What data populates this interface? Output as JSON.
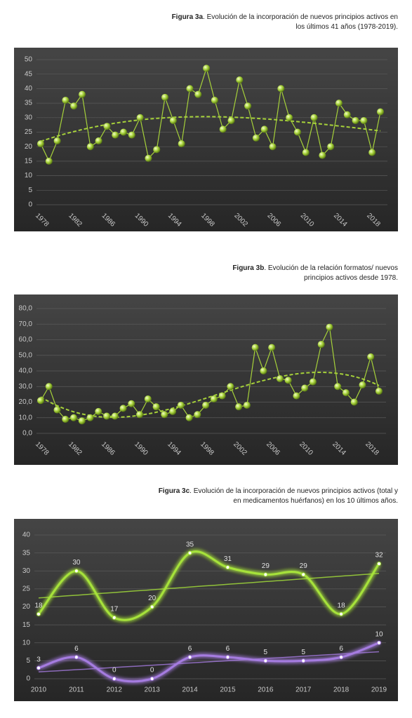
{
  "chart_data": [
    {
      "type": "line",
      "figure_label": "Figura 3a",
      "caption": ". Evolución de la incorporación de nuevos principios activos en los últimos 41 años (1978-2019).",
      "categories": [
        "1978",
        null,
        null,
        null,
        "1982",
        null,
        null,
        null,
        "1986",
        null,
        null,
        null,
        "1990",
        null,
        null,
        null,
        "1994",
        null,
        null,
        null,
        "1998",
        null,
        null,
        null,
        "2002",
        null,
        null,
        null,
        "2006",
        null,
        null,
        null,
        "2010",
        null,
        null,
        null,
        "2014",
        null,
        null,
        null,
        "2018",
        null
      ],
      "series": [
        {
          "color": "#a6d13a",
          "values": [
            21,
            15,
            22,
            36,
            34,
            38,
            20,
            22,
            27,
            24,
            25,
            24,
            30,
            16,
            19,
            37,
            29,
            21,
            40,
            38,
            47,
            36,
            26,
            29,
            43,
            34,
            23,
            26,
            20,
            40,
            30,
            25,
            18,
            30,
            17,
            20,
            35,
            31,
            29,
            29,
            18,
            32
          ]
        }
      ],
      "ylim": [
        0,
        50
      ],
      "yticks": [
        0,
        5,
        10,
        15,
        20,
        25,
        30,
        35,
        40,
        45,
        50
      ],
      "grid": true,
      "trendline": "polynomial",
      "smooth": false
    },
    {
      "type": "line",
      "figure_label": "Figura 3b",
      "caption": ". Evolución de la relación formatos/ nuevos principios activos desde 1978.",
      "categories": [
        "1978",
        null,
        null,
        null,
        "1982",
        null,
        null,
        null,
        "1986",
        null,
        null,
        null,
        "1990",
        null,
        null,
        null,
        "1994",
        null,
        null,
        null,
        "1998",
        null,
        null,
        null,
        "2002",
        null,
        null,
        null,
        "2006",
        null,
        null,
        null,
        "2010",
        null,
        null,
        null,
        "2014",
        null,
        null,
        null,
        "2018",
        null
      ],
      "series": [
        {
          "color": "#a6d13a",
          "values": [
            21,
            30,
            15,
            9,
            10,
            8,
            10,
            14,
            11,
            11,
            16,
            19,
            12,
            22,
            17,
            12,
            14,
            18,
            10,
            12,
            18,
            22,
            24,
            30,
            17,
            18,
            55,
            40,
            55,
            35,
            34,
            24,
            29,
            33,
            57,
            68,
            30,
            26,
            20,
            31,
            49,
            27
          ]
        }
      ],
      "ylim": [
        0,
        80
      ],
      "yticks": [
        {
          "value": 0,
          "label": "0,0"
        },
        {
          "value": 10,
          "label": "10,0"
        },
        {
          "value": 20,
          "label": "20,0"
        },
        {
          "value": 30,
          "label": "30,0"
        },
        {
          "value": 40,
          "label": "40,0"
        },
        {
          "value": 50,
          "label": "50,0"
        },
        {
          "value": 60,
          "label": "60,0"
        },
        {
          "value": 70,
          "label": "70,0"
        },
        {
          "value": 80,
          "label": "80,0"
        }
      ],
      "grid": true,
      "trendline": "polynomial",
      "smooth": false
    },
    {
      "type": "line",
      "figure_label": "Figura 3c",
      "caption": ". Evolución de la incorporación de nuevos principios activos (total y en medicamentos huérfanos) en los 10 últimos años.",
      "categories": [
        "2010",
        "2011",
        "2012",
        "2013",
        "2014",
        "2015",
        "2016",
        "2017",
        "2018",
        "2019"
      ],
      "series": [
        {
          "color": "#a6e23a",
          "values": [
            18,
            30,
            17,
            20,
            35,
            31,
            29,
            29,
            18,
            32
          ]
        },
        {
          "color": "#a57be0",
          "values": [
            3,
            6,
            0,
            0,
            6,
            6,
            5,
            5,
            6,
            10
          ]
        }
      ],
      "ylim": [
        0,
        40
      ],
      "yticks": [
        0,
        5,
        10,
        15,
        20,
        25,
        30,
        35,
        40
      ],
      "grid": true,
      "trendline": "linear",
      "smooth": true,
      "data_labels": true
    }
  ]
}
